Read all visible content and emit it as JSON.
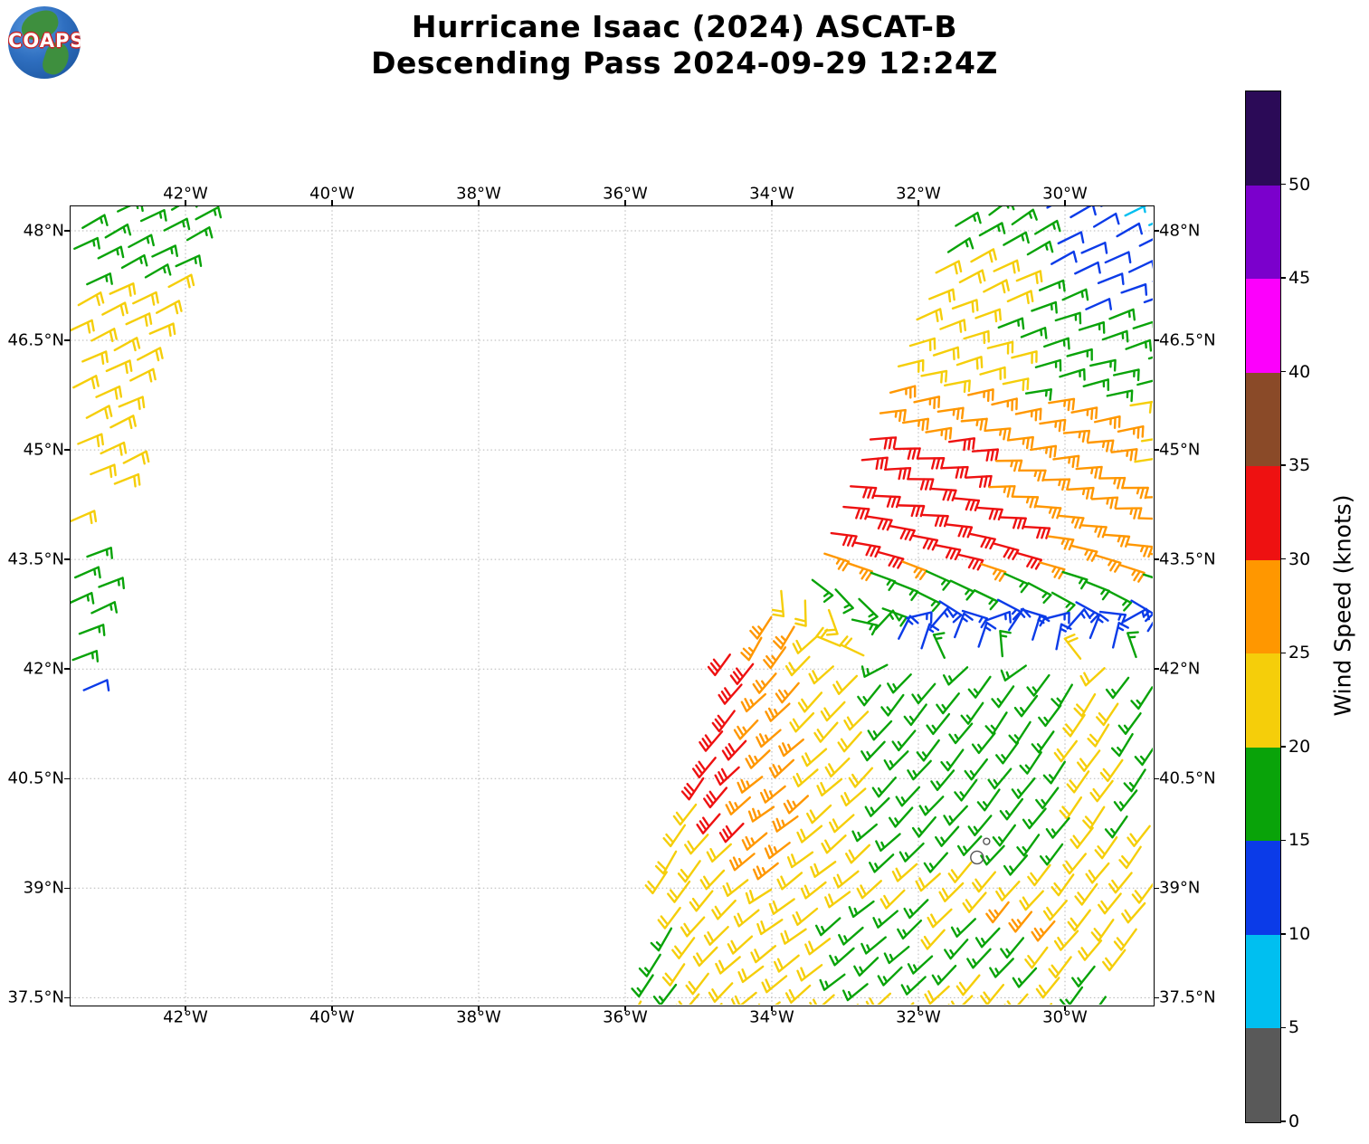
{
  "header": {
    "title_line1": "Hurricane Isaac (2024) ASCAT-B",
    "title_line2": "Descending Pass 2024-09-29 12:24Z",
    "logo_text": "COAPS"
  },
  "chart_data": {
    "type": "wind_barb_map",
    "title": "Hurricane Isaac (2024) ASCAT-B Descending Pass 2024-09-29 12:24Z",
    "satellite": "ASCAT-B",
    "pass_type": "Descending",
    "pass_time": "2024-09-29 12:24Z",
    "grid": true,
    "axis_extent": {
      "lon_west": 43.57,
      "lon_east": 28.8,
      "lat_south": 37.4,
      "lat_north": 48.33
    },
    "x_axis": {
      "ticks": [
        {
          "lon": 42,
          "label": "42°W"
        },
        {
          "lon": 40,
          "label": "40°W"
        },
        {
          "lon": 38,
          "label": "38°W"
        },
        {
          "lon": 36,
          "label": "36°W"
        },
        {
          "lon": 34,
          "label": "34°W"
        },
        {
          "lon": 32,
          "label": "32°W"
        },
        {
          "lon": 30,
          "label": "30°W"
        }
      ]
    },
    "y_axis": {
      "ticks": [
        {
          "lat": 48,
          "label": "48°N"
        },
        {
          "lat": 46.5,
          "label": "46.5°N"
        },
        {
          "lat": 45,
          "label": "45°N"
        },
        {
          "lat": 43.5,
          "label": "43.5°N"
        },
        {
          "lat": 42,
          "label": "42°N"
        },
        {
          "lat": 40.5,
          "label": "40.5°N"
        },
        {
          "lat": 39,
          "label": "39°N"
        },
        {
          "lat": 37.5,
          "label": "37.5°N"
        }
      ]
    },
    "colorbar": {
      "label": "Wind Speed (knots)",
      "levels": [
        0,
        5,
        10,
        15,
        20,
        25,
        30,
        35,
        40,
        45,
        50
      ],
      "tick_labels": [
        "0",
        "5",
        "10",
        "15",
        "20",
        "25",
        "30",
        "35",
        "40",
        "45",
        "50"
      ],
      "colors": [
        "#595959",
        "#00BFF0",
        "#0B3BE8",
        "#09A309",
        "#F5CE0A",
        "#FF9700",
        "#EE1111",
        "#8A4A28",
        "#FC00FC",
        "#7B00CC",
        "#2B0A57"
      ],
      "over_color": "#2B0A57",
      "units": "knots"
    },
    "barb_field": {
      "barb_spacing_deg": 0.345,
      "speed_units": "knots",
      "swaths": [
        {
          "name": "left-swath",
          "polygon": [
            [
              43.6,
              48.38
            ],
            [
              41.42,
              48.38
            ],
            [
              42.32,
              46.4
            ],
            [
              42.78,
              44.9
            ],
            [
              43.02,
              43.5
            ],
            [
              43.17,
              42.4
            ],
            [
              43.34,
              41.55
            ],
            [
              43.6,
              41.55
            ]
          ],
          "holes": [
            [
              43.42,
              42.88,
              43.78,
              44.32
            ]
          ],
          "default_speed": 22,
          "speed_patches": [
            [
              43.45,
              43.02,
              41.55,
              42.0,
              12
            ],
            [
              43.6,
              41.3,
              47.25,
              48.4,
              17
            ],
            [
              43.6,
              42.8,
              41.55,
              43.8,
              17
            ]
          ],
          "direction_model": {
            "mode": "linear",
            "az_at_48_3": 62,
            "daz_per_deg_south": 1.0
          }
        },
        {
          "name": "right-swath",
          "polygon": [
            [
              31.55,
              48.38
            ],
            [
              28.74,
              48.38
            ],
            [
              28.74,
              38.95
            ],
            [
              29.3,
              37.85
            ],
            [
              29.45,
              37.3
            ],
            [
              36.2,
              37.3
            ],
            [
              36.0,
              37.6
            ],
            [
              35.45,
              39.2
            ],
            [
              35.0,
              40.6
            ],
            [
              34.62,
              42.15
            ],
            [
              34.22,
              42.78
            ],
            [
              33.68,
              43.38
            ],
            [
              33.42,
              44.0
            ],
            [
              32.92,
              45.0
            ],
            [
              32.6,
              45.9
            ],
            [
              32.37,
              46.5
            ],
            [
              31.9,
              47.6
            ]
          ],
          "holes": [],
          "default_speed": 22,
          "speed_patches": [
            [
              29.35,
              28.75,
              48.05,
              48.4,
              7
            ],
            [
              30.35,
              28.75,
              47.4,
              48.4,
              12
            ],
            [
              29.95,
              28.75,
              46.85,
              47.4,
              12
            ],
            [
              31.95,
              30.65,
              46.95,
              47.6,
              22
            ],
            [
              32.5,
              31.0,
              46.25,
              46.95,
              22
            ],
            [
              33.05,
              30.55,
              45.85,
              46.3,
              22
            ],
            [
              31.75,
              28.75,
              46.1,
              48.4,
              17
            ],
            [
              30.55,
              28.75,
              45.7,
              46.1,
              17
            ],
            [
              33.2,
              31.05,
              43.55,
              45.2,
              32
            ],
            [
              31.25,
              30.45,
              43.5,
              44.3,
              32
            ],
            [
              29.2,
              28.75,
              44.35,
              46.0,
              22
            ],
            [
              33.35,
              29.2,
              44.8,
              46.1,
              27
            ],
            [
              34.3,
              33.55,
              43.4,
              44.55,
              22
            ],
            [
              34.0,
              28.75,
              43.35,
              44.9,
              27
            ],
            [
              33.6,
              28.75,
              43.0,
              43.35,
              17
            ],
            [
              33.55,
              32.95,
              42.0,
              43.1,
              22
            ],
            [
              34.65,
              34.25,
              41.3,
              43.0,
              31
            ],
            [
              34.25,
              33.55,
              41.25,
              42.95,
              27
            ],
            [
              32.95,
              32.3,
              42.3,
              43.1,
              17
            ],
            [
              32.3,
              28.75,
              42.25,
              43.05,
              13
            ],
            [
              34.75,
              34.05,
              41.15,
              42.3,
              32
            ],
            [
              34.95,
              34.35,
              39.85,
              41.15,
              32
            ],
            [
              34.4,
              33.45,
              39.25,
              42.3,
              27
            ],
            [
              33.45,
              32.6,
              39.15,
              42.25,
              22
            ],
            [
              29.2,
              28.75,
              39.9,
              42.25,
              17
            ],
            [
              32.6,
              29.9,
              39.4,
              42.25,
              17
            ],
            [
              30.8,
              30.1,
              38.5,
              38.95,
              26
            ],
            [
              36.1,
              35.3,
              37.65,
              38.5,
              17
            ],
            [
              33.15,
              31.7,
              37.65,
              38.9,
              17
            ],
            [
              31.5,
              30.3,
              37.9,
              38.7,
              17
            ],
            [
              29.8,
              29.2,
              37.45,
              37.95,
              17
            ]
          ],
          "direction_model": {
            "mode": "grid",
            "lons": [
              35.5,
              34.0,
              32.5,
              31.0,
              29.5,
              28.8
            ],
            "lats": [
              48.3,
              46.5,
              45.0,
              44.0,
              43.4,
              42.9,
              42.45,
              41.8,
              40.5,
              39.0,
              37.4
            ],
            "az_from_deg": [
              [
                52,
                52,
                53,
                55,
                60,
                62
              ],
              [
                70,
                70,
                71,
                72,
                72,
                72
              ],
              [
                86,
                86,
                86,
                85,
                83,
                82
              ],
              [
                96,
                97,
                97,
                96,
                92,
                90
              ],
              [
                106,
                108,
                110,
                110,
                108,
                106
              ],
              [
                205,
                210,
                120,
                122,
                120,
                118
              ],
              [
                208,
                212,
                25,
                22,
                20,
                20
              ],
              [
                205,
                225,
                220,
                215,
                213,
                213
              ],
              [
                208,
                232,
                225,
                218,
                215,
                215
              ],
              [
                210,
                235,
                230,
                222,
                218,
                218
              ],
              [
                212,
                232,
                228,
                222,
                218,
                218
              ]
            ]
          }
        }
      ],
      "markers": [
        {
          "lon": 31.07,
          "lat": 39.64,
          "radius_px": 3.5,
          "color": "#555555"
        },
        {
          "lon": 31.2,
          "lat": 39.42,
          "radius_px": 7,
          "color": "#555555"
        }
      ]
    }
  }
}
